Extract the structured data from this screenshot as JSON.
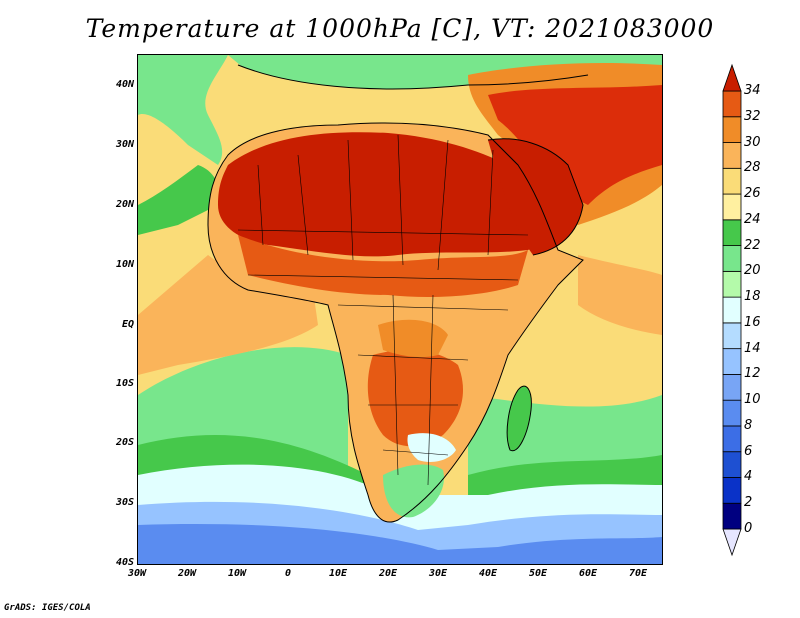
{
  "title": "Temperature at 1000hPa [C], VT: 2021083000",
  "footer": "GrADS: IGES/COLA",
  "y_ticks": [
    "40N",
    "30N",
    "20N",
    "10N",
    "EQ",
    "10S",
    "20S",
    "30S",
    "40S"
  ],
  "x_ticks": [
    "30W",
    "20W",
    "10W",
    "0",
    "10E",
    "20E",
    "30E",
    "40E",
    "50E",
    "60E",
    "70E"
  ],
  "colorbar": {
    "levels": [
      "34",
      "32",
      "30",
      "28",
      "26",
      "24",
      "22",
      "20",
      "18",
      "16",
      "14",
      "12",
      "10",
      "8",
      "6",
      "4",
      "2",
      "0"
    ],
    "colors": [
      "#000080",
      "#0a32c8",
      "#1e50d2",
      "#3c6ee6",
      "#5a8cf0",
      "#78a5f5",
      "#96c3ff",
      "#b4dcff",
      "#e1ffff",
      "#b4faaa",
      "#78e68c",
      "#46c84b",
      "#fff0a0",
      "#fadc78",
      "#fab45a",
      "#f08c28",
      "#e65a14",
      "#dc2d0a",
      "#c81e00"
    ]
  },
  "map_colors": {
    "ocean_cold": "#5a8cf0",
    "ocean_cool": "#96c3ff",
    "ocean_mild": "#e1ffff",
    "ocean_green": "#78e68c",
    "ocean_warm": "#fff0a0",
    "land_warm": "#fab45a",
    "land_hot": "#e65a14",
    "land_hottest": "#c81e00"
  }
}
